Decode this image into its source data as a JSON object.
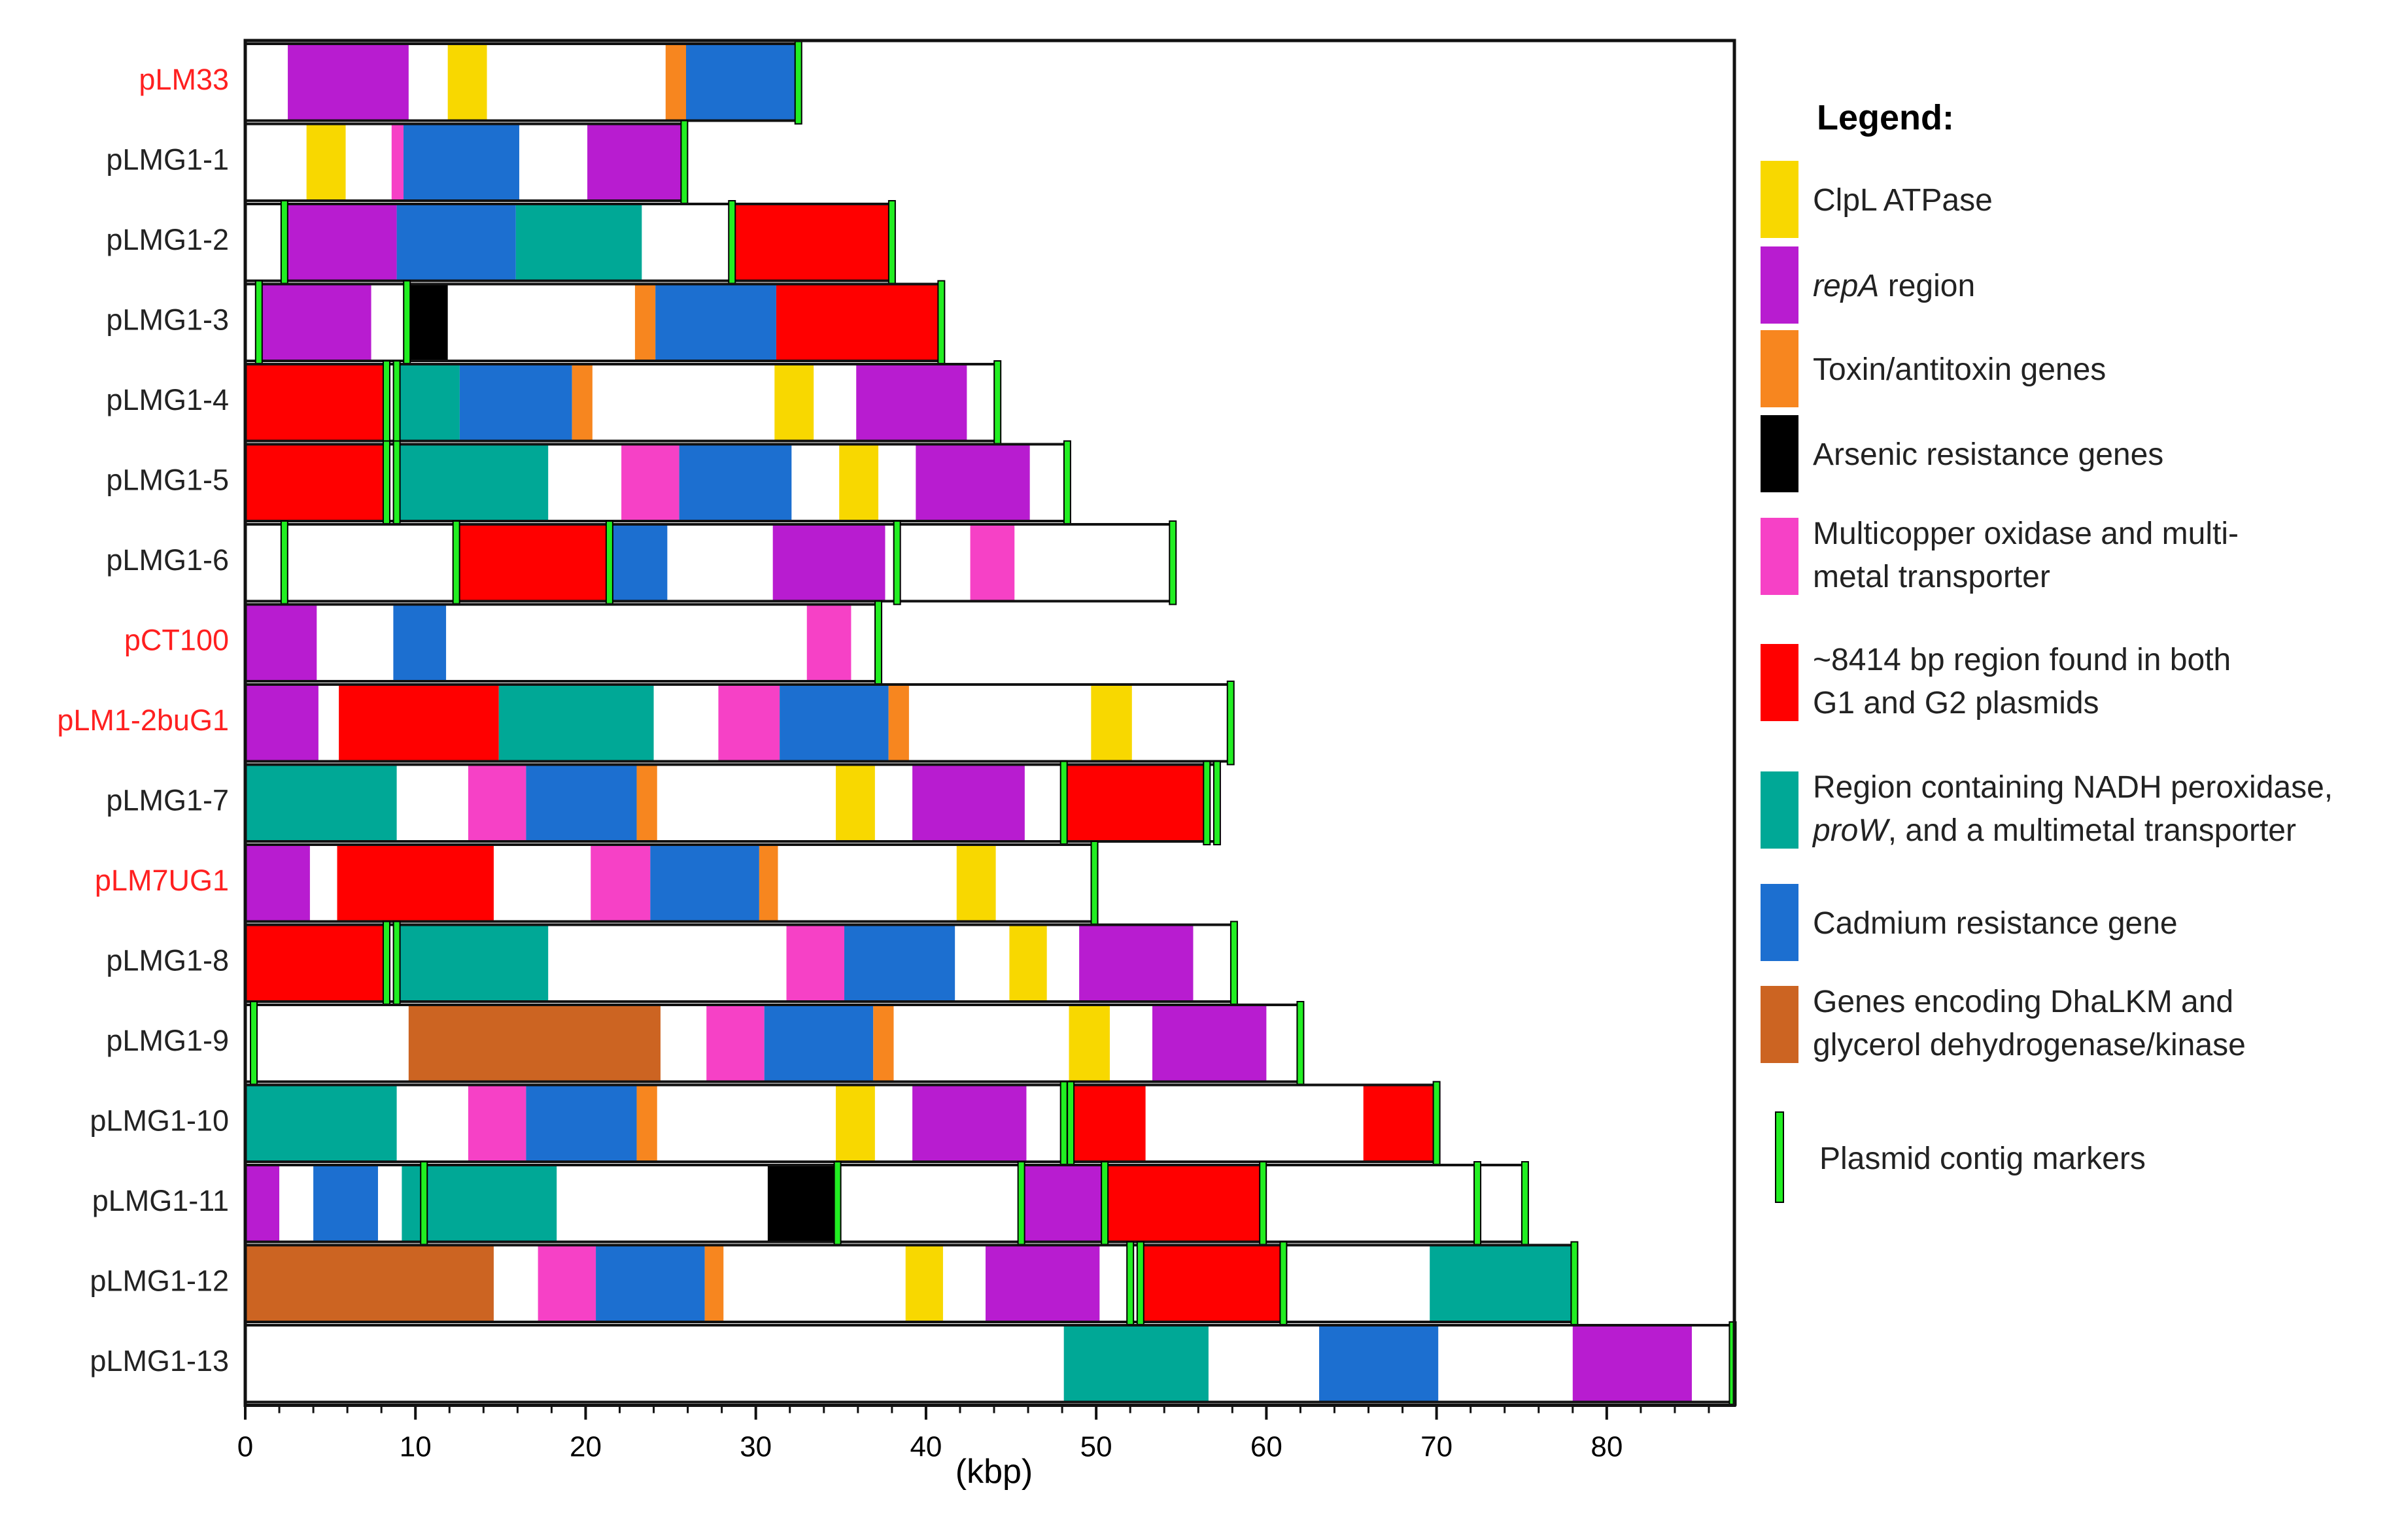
{
  "chart_data": {
    "type": "bar",
    "subtype": "plasmid-map",
    "xlabel": "(kbp)",
    "xlim": [
      0,
      87.5
    ],
    "xticks": [
      0,
      10,
      20,
      30,
      40,
      50,
      60,
      70,
      80
    ],
    "xtick_labels": [
      "0",
      "10",
      "20",
      "30",
      "40",
      "50",
      "60",
      "70",
      "80"
    ],
    "legend": {
      "title": "Legend:",
      "entries": [
        {
          "key": "clpl",
          "label_lines": [
            "ClpL ATPase"
          ],
          "color": "#f8d800"
        },
        {
          "key": "repa",
          "label_lines": [
            "repA region"
          ],
          "italic_prefix": "repA",
          "color": "#b81cd0"
        },
        {
          "key": "toxin",
          "label_lines": [
            "Toxin/antitoxin genes"
          ],
          "color": "#f7861f"
        },
        {
          "key": "arsenic",
          "label_lines": [
            "Arsenic resistance genes"
          ],
          "color": "#000000"
        },
        {
          "key": "mco",
          "label_lines": [
            "Multicopper oxidase and multi-",
            "metal transporter"
          ],
          "color": "#f641c6"
        },
        {
          "key": "region8414",
          "label_lines": [
            "~8414 bp region found in both",
            "G1 and G2 plasmids"
          ],
          "color": "#ff0000"
        },
        {
          "key": "nadh",
          "label_lines": [
            "Region containing NADH peroxidase,",
            "proW, and a multimetal transporter"
          ],
          "italic_line2_prefix": "proW",
          "color": "#00a896"
        },
        {
          "key": "cadmium",
          "label_lines": [
            "Cadmium resistance gene"
          ],
          "color": "#1c6fd0"
        },
        {
          "key": "dha",
          "label_lines": [
            "Genes encoding DhaLKM and",
            "glycerol dehydrogenase/kinase"
          ],
          "color": "#cc6422"
        },
        {
          "key": "marker",
          "label_lines": [
            "Plasmid contig markers"
          ],
          "color": "#22ee22",
          "is_marker": true
        }
      ]
    },
    "series": [
      {
        "name": "pLM33",
        "length": 32.5,
        "label_color": "#ff2020",
        "segments": [
          [
            2.5,
            9.6,
            "repa"
          ],
          [
            11.9,
            14.2,
            "clpl"
          ],
          [
            24.7,
            25.9,
            "toxin"
          ],
          [
            25.9,
            32.5,
            "cadmium"
          ]
        ],
        "markers": [
          32.5
        ]
      },
      {
        "name": "pLMG1-1",
        "length": 25.8,
        "label_color": "#222222",
        "segments": [
          [
            3.6,
            5.9,
            "clpl"
          ],
          [
            8.6,
            9.3,
            "mco"
          ],
          [
            9.3,
            16.1,
            "cadmium"
          ],
          [
            20.1,
            25.8,
            "repa"
          ]
        ],
        "markers": [
          25.8
        ]
      },
      {
        "name": "pLMG1-2",
        "length": 38.0,
        "label_color": "#222222",
        "segments": [
          [
            2.3,
            8.9,
            "repa"
          ],
          [
            8.9,
            15.9,
            "cadmium"
          ],
          [
            15.9,
            23.3,
            "nadh"
          ],
          [
            28.6,
            38.0,
            "region8414"
          ]
        ],
        "markers": [
          2.3,
          28.6,
          38.0
        ]
      },
      {
        "name": "pLMG1-3",
        "length": 40.9,
        "label_color": "#222222",
        "segments": [
          [
            0.8,
            7.4,
            "repa"
          ],
          [
            9.5,
            11.9,
            "arsenic"
          ],
          [
            22.9,
            24.1,
            "toxin"
          ],
          [
            24.1,
            31.2,
            "cadmium"
          ],
          [
            31.2,
            40.9,
            "region8414"
          ]
        ],
        "markers": [
          0.8,
          9.5,
          40.9
        ]
      },
      {
        "name": "pLMG1-4",
        "length": 44.2,
        "label_color": "#222222",
        "segments": [
          [
            0,
            8.3,
            "region8414"
          ],
          [
            8.9,
            12.6,
            "nadh"
          ],
          [
            12.6,
            19.2,
            "cadmium"
          ],
          [
            19.2,
            20.4,
            "toxin"
          ],
          [
            31.1,
            33.4,
            "clpl"
          ],
          [
            35.9,
            42.4,
            "repa"
          ]
        ],
        "markers": [
          8.3,
          8.9,
          44.2
        ]
      },
      {
        "name": "pLMG1-5",
        "length": 48.3,
        "label_color": "#222222",
        "segments": [
          [
            0,
            8.3,
            "region8414"
          ],
          [
            8.9,
            17.8,
            "nadh"
          ],
          [
            22.1,
            25.5,
            "mco"
          ],
          [
            25.5,
            32.1,
            "cadmium"
          ],
          [
            34.9,
            37.2,
            "clpl"
          ],
          [
            39.4,
            46.1,
            "repa"
          ]
        ],
        "markers": [
          8.3,
          8.9,
          48.3
        ]
      },
      {
        "name": "pLMG1-6",
        "length": 54.5,
        "label_color": "#222222",
        "segments": [
          [
            12.4,
            21.4,
            "region8414"
          ],
          [
            21.4,
            24.8,
            "cadmium"
          ],
          [
            31.0,
            37.6,
            "repa"
          ],
          [
            42.6,
            45.2,
            "mco"
          ]
        ],
        "markers": [
          2.3,
          12.4,
          21.4,
          38.3,
          54.5
        ]
      },
      {
        "name": "pCT100",
        "length": 37.2,
        "label_color": "#ff2020",
        "segments": [
          [
            0,
            4.2,
            "repa"
          ],
          [
            8.7,
            11.8,
            "cadmium"
          ],
          [
            33.0,
            35.6,
            "mco"
          ]
        ],
        "markers": [
          37.2
        ]
      },
      {
        "name": "pLM1-2buG1",
        "length": 57.9,
        "label_color": "#ff2020",
        "segments": [
          [
            0,
            4.3,
            "repa"
          ],
          [
            5.5,
            14.9,
            "region8414"
          ],
          [
            14.9,
            24.0,
            "nadh"
          ],
          [
            27.8,
            31.4,
            "mco"
          ],
          [
            31.4,
            37.8,
            "cadmium"
          ],
          [
            37.8,
            39.0,
            "toxin"
          ],
          [
            49.7,
            52.1,
            "clpl"
          ]
        ],
        "markers": [
          57.9
        ]
      },
      {
        "name": "pLMG1-7",
        "length": 57.1,
        "label_color": "#222222",
        "segments": [
          [
            0,
            8.9,
            "nadh"
          ],
          [
            13.1,
            16.5,
            "mco"
          ],
          [
            16.5,
            23.0,
            "cadmium"
          ],
          [
            23.0,
            24.2,
            "toxin"
          ],
          [
            34.7,
            37.0,
            "clpl"
          ],
          [
            39.2,
            45.8,
            "repa"
          ],
          [
            48.1,
            56.5,
            "region8414"
          ]
        ],
        "markers": [
          48.1,
          56.5,
          57.1
        ]
      },
      {
        "name": "pLM7UG1",
        "length": 49.9,
        "label_color": "#ff2020",
        "segments": [
          [
            0,
            3.8,
            "repa"
          ],
          [
            5.4,
            14.6,
            "region8414"
          ],
          [
            20.3,
            23.8,
            "mco"
          ],
          [
            23.8,
            30.2,
            "cadmium"
          ],
          [
            30.2,
            31.3,
            "toxin"
          ],
          [
            41.8,
            44.1,
            "clpl"
          ]
        ],
        "markers": [
          49.9
        ]
      },
      {
        "name": "pLMG1-8",
        "length": 58.1,
        "label_color": "#222222",
        "segments": [
          [
            0,
            8.3,
            "region8414"
          ],
          [
            8.9,
            17.8,
            "nadh"
          ],
          [
            31.8,
            35.2,
            "mco"
          ],
          [
            35.2,
            41.7,
            "cadmium"
          ],
          [
            44.9,
            47.1,
            "clpl"
          ],
          [
            49.0,
            55.7,
            "repa"
          ]
        ],
        "markers": [
          8.3,
          8.9,
          58.1
        ]
      },
      {
        "name": "pLMG1-9",
        "length": 62.0,
        "label_color": "#222222",
        "segments": [
          [
            9.6,
            24.4,
            "dha"
          ],
          [
            27.1,
            30.5,
            "mco"
          ],
          [
            30.5,
            36.9,
            "cadmium"
          ],
          [
            36.9,
            38.1,
            "toxin"
          ],
          [
            48.4,
            50.8,
            "clpl"
          ],
          [
            53.3,
            60.0,
            "repa"
          ]
        ],
        "markers": [
          0.5,
          62.0
        ]
      },
      {
        "name": "pLMG1-10",
        "length": 70.0,
        "label_color": "#222222",
        "segments": [
          [
            0,
            8.9,
            "nadh"
          ],
          [
            13.1,
            16.5,
            "mco"
          ],
          [
            16.5,
            23.0,
            "cadmium"
          ],
          [
            23.0,
            24.2,
            "toxin"
          ],
          [
            34.7,
            37.0,
            "clpl"
          ],
          [
            39.2,
            45.9,
            "repa"
          ],
          [
            48.4,
            52.9,
            "region8414"
          ],
          [
            65.7,
            70.0,
            "region8414"
          ]
        ],
        "markers": [
          48.1,
          48.5,
          70.0
        ]
      },
      {
        "name": "pLMG1-11",
        "length": 75.2,
        "label_color": "#222222",
        "segments": [
          [
            0,
            2.0,
            "repa"
          ],
          [
            4.0,
            7.8,
            "cadmium"
          ],
          [
            9.2,
            10.5,
            "nadh"
          ],
          [
            10.5,
            18.3,
            "nadh"
          ],
          [
            30.7,
            34.8,
            "arsenic"
          ],
          [
            45.6,
            50.5,
            "repa"
          ],
          [
            50.5,
            59.8,
            "region8414"
          ]
        ],
        "markers": [
          10.5,
          34.8,
          45.6,
          50.5,
          59.8,
          72.4,
          75.2
        ]
      },
      {
        "name": "pLMG1-12",
        "length": 78.1,
        "label_color": "#222222",
        "segments": [
          [
            0,
            14.6,
            "dha"
          ],
          [
            17.2,
            20.6,
            "mco"
          ],
          [
            20.6,
            27.0,
            "cadmium"
          ],
          [
            27.0,
            28.1,
            "toxin"
          ],
          [
            38.8,
            41.0,
            "clpl"
          ],
          [
            43.5,
            50.2,
            "repa"
          ],
          [
            52.8,
            61.0,
            "region8414"
          ],
          [
            69.6,
            78.1,
            "nadh"
          ]
        ],
        "markers": [
          52.0,
          52.6,
          61.0,
          78.1
        ]
      },
      {
        "name": "pLMG1-13",
        "length": 87.4,
        "label_color": "#222222",
        "segments": [
          [
            48.1,
            56.6,
            "nadh"
          ],
          [
            63.1,
            70.1,
            "cadmium"
          ],
          [
            78.0,
            85.0,
            "repa"
          ]
        ],
        "markers": [
          87.4
        ]
      }
    ]
  }
}
